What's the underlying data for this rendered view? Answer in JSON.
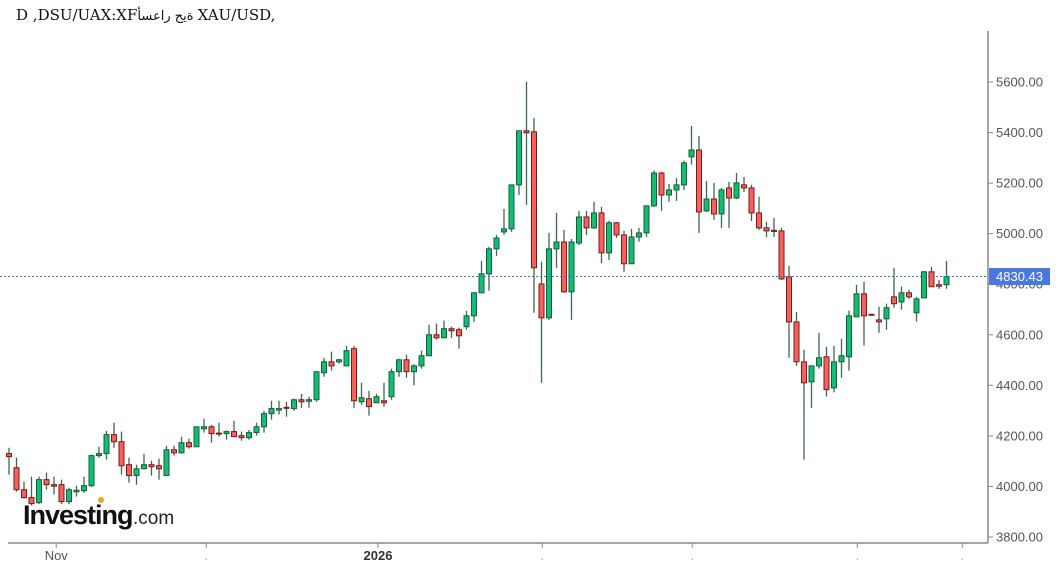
{
  "title": {
    "prefix": "D ,DSU/UAX:XF",
    "arabic": "أسعار حية",
    "suffix": "XAU/USD,"
  },
  "logo": {
    "brand": "Investing",
    "suffix": ".com"
  },
  "price_label": "4830.43",
  "colors": {
    "up_fill": "#0fc073",
    "up_border": "#1a5c3a",
    "down_fill": "#f4625b",
    "down_border": "#7a1a1a",
    "doji": "#7a1a1a",
    "wick": "#3f6652",
    "axis": "#8a8a8a",
    "price_line": "#4169e1",
    "price_box": "#4a78e3"
  },
  "chart_data": {
    "type": "candlestick",
    "title": "XAU/USD, أسعار حية FX:XAUUSD, D",
    "xlabel": "",
    "ylabel": "",
    "ylim": [
      3776,
      5802
    ],
    "grid": false,
    "last_price": 4830.43,
    "y_ticks": [
      "5600.00",
      "5400.00",
      "5200.00",
      "5000.00",
      "4800.00",
      "4600.00",
      "4400.00",
      "4200.00",
      "4000.00",
      "3800.00"
    ],
    "x_ticks": [
      {
        "label": "Nov",
        "pos": 6.3,
        "bold": false
      },
      {
        "label": ".",
        "pos": 26.3,
        "bold": false
      },
      {
        "label": "2026",
        "pos": 49.2,
        "bold": true
      },
      {
        "label": ".",
        "pos": 71.1,
        "bold": false
      },
      {
        "label": ".",
        "pos": 91.1,
        "bold": false
      },
      {
        "label": ".",
        "pos": 113.1,
        "bold": false
      },
      {
        "label": ".",
        "pos": 127.1,
        "bold": false
      }
    ],
    "candle_fields": [
      "open",
      "high",
      "low",
      "close"
    ],
    "candles": [
      [
        4130,
        4153,
        4047,
        4118
      ],
      [
        4074,
        4114,
        3979,
        3987
      ],
      [
        3987,
        4019,
        3952,
        3956
      ],
      [
        3956,
        4039,
        3925,
        3932
      ],
      [
        3936,
        4039,
        3930,
        4027
      ],
      [
        4027,
        4055,
        3987,
        4007
      ],
      [
        4007,
        4039,
        3968,
        4005
      ],
      [
        4007,
        4027,
        3930,
        3940
      ],
      [
        3940,
        3995,
        3930,
        3987
      ],
      [
        3983,
        4003,
        3960,
        3985
      ],
      [
        3983,
        4039,
        3975,
        4003
      ],
      [
        4003,
        4126,
        3998,
        4122
      ],
      [
        4122,
        4157,
        4114,
        4130
      ],
      [
        4130,
        4220,
        4106,
        4205
      ],
      [
        4205,
        4252,
        4153,
        4177
      ],
      [
        4177,
        4217,
        4047,
        4082
      ],
      [
        4086,
        4114,
        4015,
        4043
      ],
      [
        4043,
        4086,
        4007,
        4070
      ],
      [
        4070,
        4129,
        4067,
        4086
      ],
      [
        4086,
        4102,
        4043,
        4078
      ],
      [
        4082,
        4110,
        4027,
        4070
      ],
      [
        4043,
        4161,
        4043,
        4145
      ],
      [
        4145,
        4161,
        4122,
        4133
      ],
      [
        4133,
        4196,
        4130,
        4173
      ],
      [
        4173,
        4189,
        4150,
        4157
      ],
      [
        4157,
        4236,
        4157,
        4236
      ],
      [
        4228,
        4268,
        4213,
        4236
      ],
      [
        4236,
        4244,
        4173,
        4209
      ],
      [
        4209,
        4252,
        4197,
        4209
      ],
      [
        4209,
        4221,
        4185,
        4217
      ],
      [
        4217,
        4260,
        4197,
        4197
      ],
      [
        4201,
        4217,
        4181,
        4193
      ],
      [
        4193,
        4223,
        4185,
        4213
      ],
      [
        4213,
        4252,
        4201,
        4236
      ],
      [
        4236,
        4299,
        4213,
        4288
      ],
      [
        4288,
        4339,
        4264,
        4308
      ],
      [
        4304,
        4339,
        4284,
        4308
      ],
      [
        4311,
        4335,
        4276,
        4311
      ],
      [
        4308,
        4347,
        4299,
        4343
      ],
      [
        4343,
        4366,
        4311,
        4335
      ],
      [
        4339,
        4355,
        4311,
        4343
      ],
      [
        4343,
        4454,
        4335,
        4454
      ],
      [
        4450,
        4509,
        4434,
        4493
      ],
      [
        4493,
        4533,
        4458,
        4477
      ],
      [
        4493,
        4505,
        4486,
        4501
      ],
      [
        4477,
        4556,
        4477,
        4537
      ],
      [
        4545,
        4556,
        4311,
        4339
      ],
      [
        4335,
        4410,
        4323,
        4351
      ],
      [
        4347,
        4378,
        4280,
        4316
      ],
      [
        4331,
        4366,
        4331,
        4355
      ],
      [
        4339,
        4410,
        4315,
        4331
      ],
      [
        4355,
        4466,
        4343,
        4454
      ],
      [
        4454,
        4505,
        4434,
        4501
      ],
      [
        4501,
        4521,
        4430,
        4454
      ],
      [
        4454,
        4484,
        4400,
        4477
      ],
      [
        4477,
        4537,
        4466,
        4517
      ],
      [
        4517,
        4640,
        4517,
        4600
      ],
      [
        4600,
        4644,
        4580,
        4588
      ],
      [
        4588,
        4656,
        4588,
        4624
      ],
      [
        4624,
        4632,
        4588,
        4616
      ],
      [
        4620,
        4628,
        4545,
        4596
      ],
      [
        4632,
        4695,
        4620,
        4675
      ],
      [
        4675,
        4770,
        4651,
        4766
      ],
      [
        4766,
        4892,
        4766,
        4841
      ],
      [
        4841,
        4948,
        4774,
        4940
      ],
      [
        4940,
        4995,
        4912,
        4983
      ],
      [
        5007,
        5098,
        4995,
        5019
      ],
      [
        5019,
        5193,
        5007,
        5193
      ],
      [
        5193,
        5407,
        5153,
        5407
      ],
      [
        5407,
        5600,
        5114,
        5399
      ],
      [
        5403,
        5458,
        4687,
        4865
      ],
      [
        4801,
        4889,
        4410,
        4667
      ],
      [
        4667,
        5003,
        4659,
        4940
      ],
      [
        4940,
        5082,
        4865,
        4967
      ],
      [
        4967,
        5015,
        4766,
        4770
      ],
      [
        4770,
        4979,
        4659,
        4967
      ],
      [
        4963,
        5090,
        4955,
        5066
      ],
      [
        5066,
        5090,
        4995,
        5023
      ],
      [
        5023,
        5126,
        5019,
        5082
      ],
      [
        5082,
        5106,
        4884,
        4924
      ],
      [
        4924,
        5051,
        4896,
        5043
      ],
      [
        5043,
        5047,
        4983,
        4995
      ],
      [
        4995,
        5011,
        4849,
        4881
      ],
      [
        4881,
        5019,
        4881,
        4987
      ],
      [
        4987,
        5023,
        4968,
        5003
      ],
      [
        5003,
        5110,
        4987,
        5110
      ],
      [
        5110,
        5250,
        5106,
        5240
      ],
      [
        5240,
        5245,
        5090,
        5153
      ],
      [
        5153,
        5197,
        5126,
        5173
      ],
      [
        5173,
        5220,
        5130,
        5193
      ],
      [
        5193,
        5289,
        5173,
        5280
      ],
      [
        5304,
        5426,
        5273,
        5331
      ],
      [
        5331,
        5387,
        5003,
        5086
      ],
      [
        5090,
        5208,
        5086,
        5137
      ],
      [
        5137,
        5201,
        5054,
        5078
      ],
      [
        5078,
        5181,
        5023,
        5173
      ],
      [
        5181,
        5205,
        5023,
        5141
      ],
      [
        5141,
        5240,
        5137,
        5201
      ],
      [
        5193,
        5224,
        5165,
        5181
      ],
      [
        5181,
        5193,
        5050,
        5082
      ],
      [
        5082,
        5146,
        5015,
        5023
      ],
      [
        5023,
        5047,
        4987,
        5011
      ],
      [
        5011,
        5062,
        4987,
        5011
      ],
      [
        5011,
        5023,
        4817,
        4821
      ],
      [
        4829,
        4873,
        4509,
        4651
      ],
      [
        4651,
        4690,
        4477,
        4493
      ],
      [
        4493,
        4541,
        4106,
        4410
      ],
      [
        4414,
        4477,
        4311,
        4477
      ],
      [
        4477,
        4608,
        4466,
        4509
      ],
      [
        4513,
        4552,
        4356,
        4383
      ],
      [
        4390,
        4556,
        4372,
        4493
      ],
      [
        4493,
        4584,
        4430,
        4517
      ],
      [
        4513,
        4695,
        4458,
        4675
      ],
      [
        4671,
        4798,
        4671,
        4762
      ],
      [
        4762,
        4810,
        4557,
        4675
      ],
      [
        4679,
        4683,
        4675,
        4679
      ],
      [
        4659,
        4711,
        4608,
        4651
      ],
      [
        4663,
        4723,
        4620,
        4707
      ],
      [
        4750,
        4865,
        4707,
        4723
      ],
      [
        4730,
        4791,
        4699,
        4766
      ],
      [
        4766,
        4778,
        4742,
        4750
      ],
      [
        4687,
        4750,
        4652,
        4742
      ],
      [
        4746,
        4853,
        4746,
        4849
      ],
      [
        4849,
        4869,
        4790,
        4790
      ],
      [
        4798,
        4817,
        4782,
        4794
      ],
      [
        4798,
        4892,
        4782,
        4830.43
      ]
    ]
  }
}
